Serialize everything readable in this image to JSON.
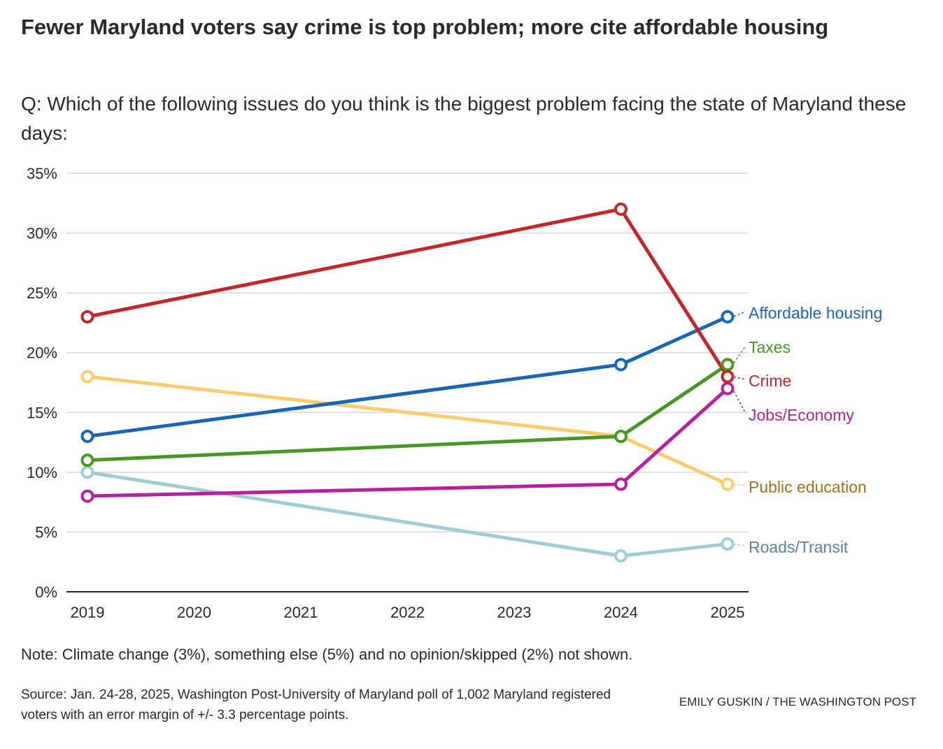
{
  "title": "Fewer Maryland voters say crime is top problem; more cite affordable housing",
  "subtitle": "Q: Which of the following issues do you think is the biggest problem facing the state of Maryland these days:",
  "note": "Note: Climate change (3%), something else (5%) and no opinion/skipped (2%) not shown.",
  "source": "Source: Jan. 24-28, 2025, Washington Post-University of Maryland poll of 1,002 Maryland registered voters with an error margin of +/- 3.3 percentage points.",
  "credit": "EMILY GUSKIN / THE WASHINGTON POST",
  "chart_data": {
    "type": "line",
    "title": "Fewer Maryland voters say crime is top problem; more cite affordable housing",
    "xlabel": "",
    "ylabel": "",
    "x_ticks": [
      "2019",
      "2020",
      "2021",
      "2022",
      "2023",
      "2024",
      "2025"
    ],
    "y_ticks": [
      "0%",
      "5%",
      "10%",
      "15%",
      "20%",
      "25%",
      "30%",
      "35%"
    ],
    "xlim": [
      2019,
      2025
    ],
    "ylim": [
      0,
      35
    ],
    "grid": true,
    "legend": "direct labels at right",
    "x": [
      2019,
      2024,
      2025
    ],
    "series": [
      {
        "name": "Affordable housing",
        "values": [
          13,
          19,
          23
        ],
        "color": "#1a66b5",
        "label_color": "#1a66b5"
      },
      {
        "name": "Taxes",
        "values": [
          11,
          13,
          19
        ],
        "color": "#4a9525",
        "label_color": "#4a9525"
      },
      {
        "name": "Crime",
        "values": [
          23,
          32,
          18
        ],
        "color": "#c0282a",
        "label_color": "#c0282a"
      },
      {
        "name": "Jobs/Economy",
        "values": [
          8,
          9,
          17
        ],
        "color": "#b5219f",
        "label_color": "#b5219f"
      },
      {
        "name": "Public education",
        "values": [
          18,
          13,
          9
        ],
        "color": "#f9cd6f",
        "label_color": "#9a7418"
      },
      {
        "name": "Roads/Transit",
        "values": [
          10,
          3,
          4
        ],
        "color": "#a0cdd5",
        "label_color": "#5a8590"
      }
    ]
  }
}
